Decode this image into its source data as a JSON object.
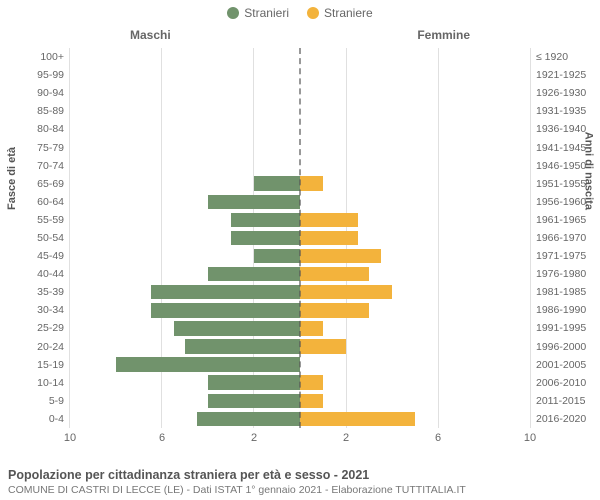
{
  "legend": {
    "male": {
      "label": "Stranieri",
      "color": "#71936c"
    },
    "female": {
      "label": "Straniere",
      "color": "#f3b33c"
    }
  },
  "header": {
    "left": "Maschi",
    "right": "Femmine"
  },
  "axisTitles": {
    "left": "Fasce di età",
    "right": "Anni di nascita"
  },
  "chart": {
    "type": "population-pyramid",
    "xmax": 10,
    "xticks": [
      10,
      6,
      2,
      2,
      6,
      10
    ],
    "grid": {
      "leftValues": [
        2,
        6,
        10
      ],
      "rightValues": [
        2,
        6,
        10
      ],
      "color": "#e0e0e0"
    },
    "centerLineColor": "#555555",
    "background": "#ffffff",
    "barColors": {
      "male": "#71936c",
      "female": "#f3b33c"
    },
    "label_fontsize": 10.5,
    "rows": [
      {
        "age": "100+",
        "birth": "≤ 1920",
        "m": 0,
        "f": 0
      },
      {
        "age": "95-99",
        "birth": "1921-1925",
        "m": 0,
        "f": 0
      },
      {
        "age": "90-94",
        "birth": "1926-1930",
        "m": 0,
        "f": 0
      },
      {
        "age": "85-89",
        "birth": "1931-1935",
        "m": 0,
        "f": 0
      },
      {
        "age": "80-84",
        "birth": "1936-1940",
        "m": 0,
        "f": 0
      },
      {
        "age": "75-79",
        "birth": "1941-1945",
        "m": 0,
        "f": 0
      },
      {
        "age": "70-74",
        "birth": "1946-1950",
        "m": 0,
        "f": 0
      },
      {
        "age": "65-69",
        "birth": "1951-1955",
        "m": 2.0,
        "f": 1.0
      },
      {
        "age": "60-64",
        "birth": "1956-1960",
        "m": 4.0,
        "f": 0
      },
      {
        "age": "55-59",
        "birth": "1961-1965",
        "m": 3.0,
        "f": 2.5
      },
      {
        "age": "50-54",
        "birth": "1966-1970",
        "m": 3.0,
        "f": 2.5
      },
      {
        "age": "45-49",
        "birth": "1971-1975",
        "m": 2.0,
        "f": 3.5
      },
      {
        "age": "40-44",
        "birth": "1976-1980",
        "m": 4.0,
        "f": 3.0
      },
      {
        "age": "35-39",
        "birth": "1981-1985",
        "m": 6.5,
        "f": 4.0
      },
      {
        "age": "30-34",
        "birth": "1986-1990",
        "m": 6.5,
        "f": 3.0
      },
      {
        "age": "25-29",
        "birth": "1991-1995",
        "m": 5.5,
        "f": 1.0
      },
      {
        "age": "20-24",
        "birth": "1996-2000",
        "m": 5.0,
        "f": 2.0
      },
      {
        "age": "15-19",
        "birth": "2001-2005",
        "m": 8.0,
        "f": 0
      },
      {
        "age": "10-14",
        "birth": "2006-2010",
        "m": 4.0,
        "f": 1.0
      },
      {
        "age": "5-9",
        "birth": "2011-2015",
        "m": 4.0,
        "f": 1.0
      },
      {
        "age": "0-4",
        "birth": "2016-2020",
        "m": 4.5,
        "f": 5.0
      }
    ]
  },
  "caption": {
    "title": "Popolazione per cittadinanza straniera per età e sesso - 2021",
    "sub": "COMUNE DI CASTRI DI LECCE (LE) - Dati ISTAT 1° gennaio 2021 - Elaborazione TUTTITALIA.IT"
  }
}
